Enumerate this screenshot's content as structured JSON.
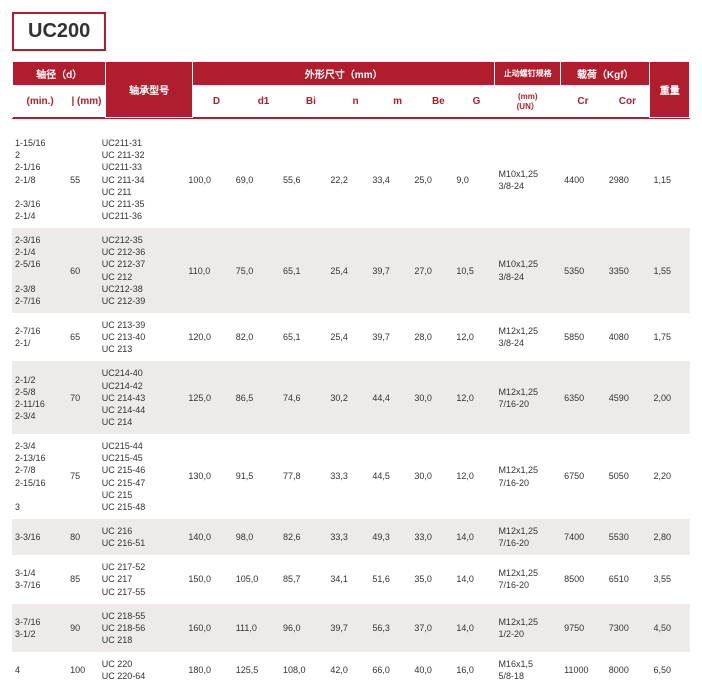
{
  "title": "UC200",
  "header": {
    "shaft_dia": "轴径（d）",
    "model": "轴承型号",
    "dims": "外形尺寸（mm）",
    "thread": "止动螺钉规格",
    "load": "载荷（Kgf）",
    "weight": "重量",
    "min": "(min.)",
    "mm": "| (mm)",
    "D": "D",
    "d1": "d1",
    "Bi": "Bi",
    "n": "n",
    "m": "m",
    "Be": "Be",
    "G": "G",
    "thread_sub": "(mm)\n(UN）",
    "Cr": "Cr",
    "Cor": "Cor"
  },
  "rows": [
    {
      "shade": false,
      "min": "1-15/16\n2\n2-1/16\n2-1/8\n\n2-3/16\n2-1/4",
      "mm": "55",
      "model": "UC211-31\nUC 211-32\nUC211-33\nUC 211-34\nUC 211\nUC 211-35\nUC211-36",
      "D": "100,0",
      "d1": "69,0",
      "Bi": "55,6",
      "n": "22,2",
      "m": "33,4",
      "Be": "25,0",
      "G": "9,0",
      "thread": "M10x1,25\n3/8-24",
      "Cr": "4400",
      "Cor": "2980",
      "wt": "1,15"
    },
    {
      "shade": true,
      "min": "2-3/16\n2-1/4\n2-5/16\n\n2-3/8\n2-7/16",
      "mm": "60",
      "model": "UC212-35\nUC 212-36\nUC 212-37\nUC 212\nUC212-38\nUC 212-39",
      "D": "110,0",
      "d1": "75,0",
      "Bi": "65,1",
      "n": "25,4",
      "m": "39,7",
      "Be": "27,0",
      "G": "10,5",
      "thread": "M10x1,25\n3/8-24",
      "Cr": "5350",
      "Cor": "3350",
      "wt": "1,55"
    },
    {
      "shade": false,
      "min": "2-7/16\n2-1/",
      "mm": "65",
      "model": "UC 213-39\nUC 213-40\nUC 213",
      "D": "120,0",
      "d1": "82,0",
      "Bi": "65,1",
      "n": "25,4",
      "m": "39,7",
      "Be": "28,0",
      "G": "12,0",
      "thread": "M12x1,25\n3/8-24",
      "Cr": "5850",
      "Cor": "4080",
      "wt": "1,75"
    },
    {
      "shade": true,
      "min": "2-1/2\n2-5/8\n2-11/16\n2-3/4",
      "mm": "70",
      "model": "UC214-40\nUC214-42\nUC 214-43\nUC 214-44\nUC 214",
      "D": "125,0",
      "d1": "86,5",
      "Bi": "74,6",
      "n": "30,2",
      "m": "44,4",
      "Be": "30,0",
      "G": "12,0",
      "thread": "M12x1,25\n7/16-20",
      "Cr": "6350",
      "Cor": "4590",
      "wt": "2,00"
    },
    {
      "shade": false,
      "min": "2-3/4\n2-13/16\n2-7/8\n2-15/16\n\n3",
      "mm": "75",
      "model": "UC215-44\nUC215-45\nUC 215-46\nUC 215-47\nUC 215\nUC 215-48",
      "D": "130,0",
      "d1": "91,5",
      "Bi": "77,8",
      "n": "33,3",
      "m": "44,5",
      "Be": "30,0",
      "G": "12,0",
      "thread": "M12x1,25\n7/16-20",
      "Cr": "6750",
      "Cor": "5050",
      "wt": "2,20"
    },
    {
      "shade": true,
      "min": "3-3/16",
      "mm": "80",
      "model": "UC 216\nUC 216-51",
      "D": "140,0",
      "d1": "98,0",
      "Bi": "82,6",
      "n": "33,3",
      "m": "49,3",
      "Be": "33,0",
      "G": "14,0",
      "thread": "M12x1,25\n7/16-20",
      "Cr": "7400",
      "Cor": "5530",
      "wt": "2,80"
    },
    {
      "shade": false,
      "min": "3-1/4\n3-7/16",
      "mm": "85",
      "model": "UC 217-52\nUC 217\nUC 217-55",
      "D": "150,0",
      "d1": "105,0",
      "Bi": "85,7",
      "n": "34,1",
      "m": "51,6",
      "Be": "35,0",
      "G": "14,0",
      "thread": "M12x1,25\n7/16-20",
      "Cr": "8500",
      "Cor": "6510",
      "wt": "3,55"
    },
    {
      "shade": true,
      "min": "3-7/16\n3-1/2",
      "mm": "90",
      "model": "UC 218-55\nUC 218-56\nUC 218",
      "D": "160,0",
      "d1": "111,0",
      "Bi": "96,0",
      "n": "39,7",
      "m": "56,3",
      "Be": "37,0",
      "G": "14,0",
      "thread": "M12x1,25\n1/2-20",
      "Cr": "9750",
      "Cor": "7300",
      "wt": "4,50"
    },
    {
      "shade": false,
      "min": "4",
      "mm": "100",
      "model": "UC 220\nUC 220-64",
      "D": "180,0",
      "d1": "125,5",
      "Bi": "108,0",
      "n": "42,0",
      "m": "66,0",
      "Be": "40,0",
      "G": "16,0",
      "thread": "M16x1,5\n5/8-18",
      "Cr": "11000",
      "Cor": "8000",
      "wt": "6,50"
    }
  ]
}
